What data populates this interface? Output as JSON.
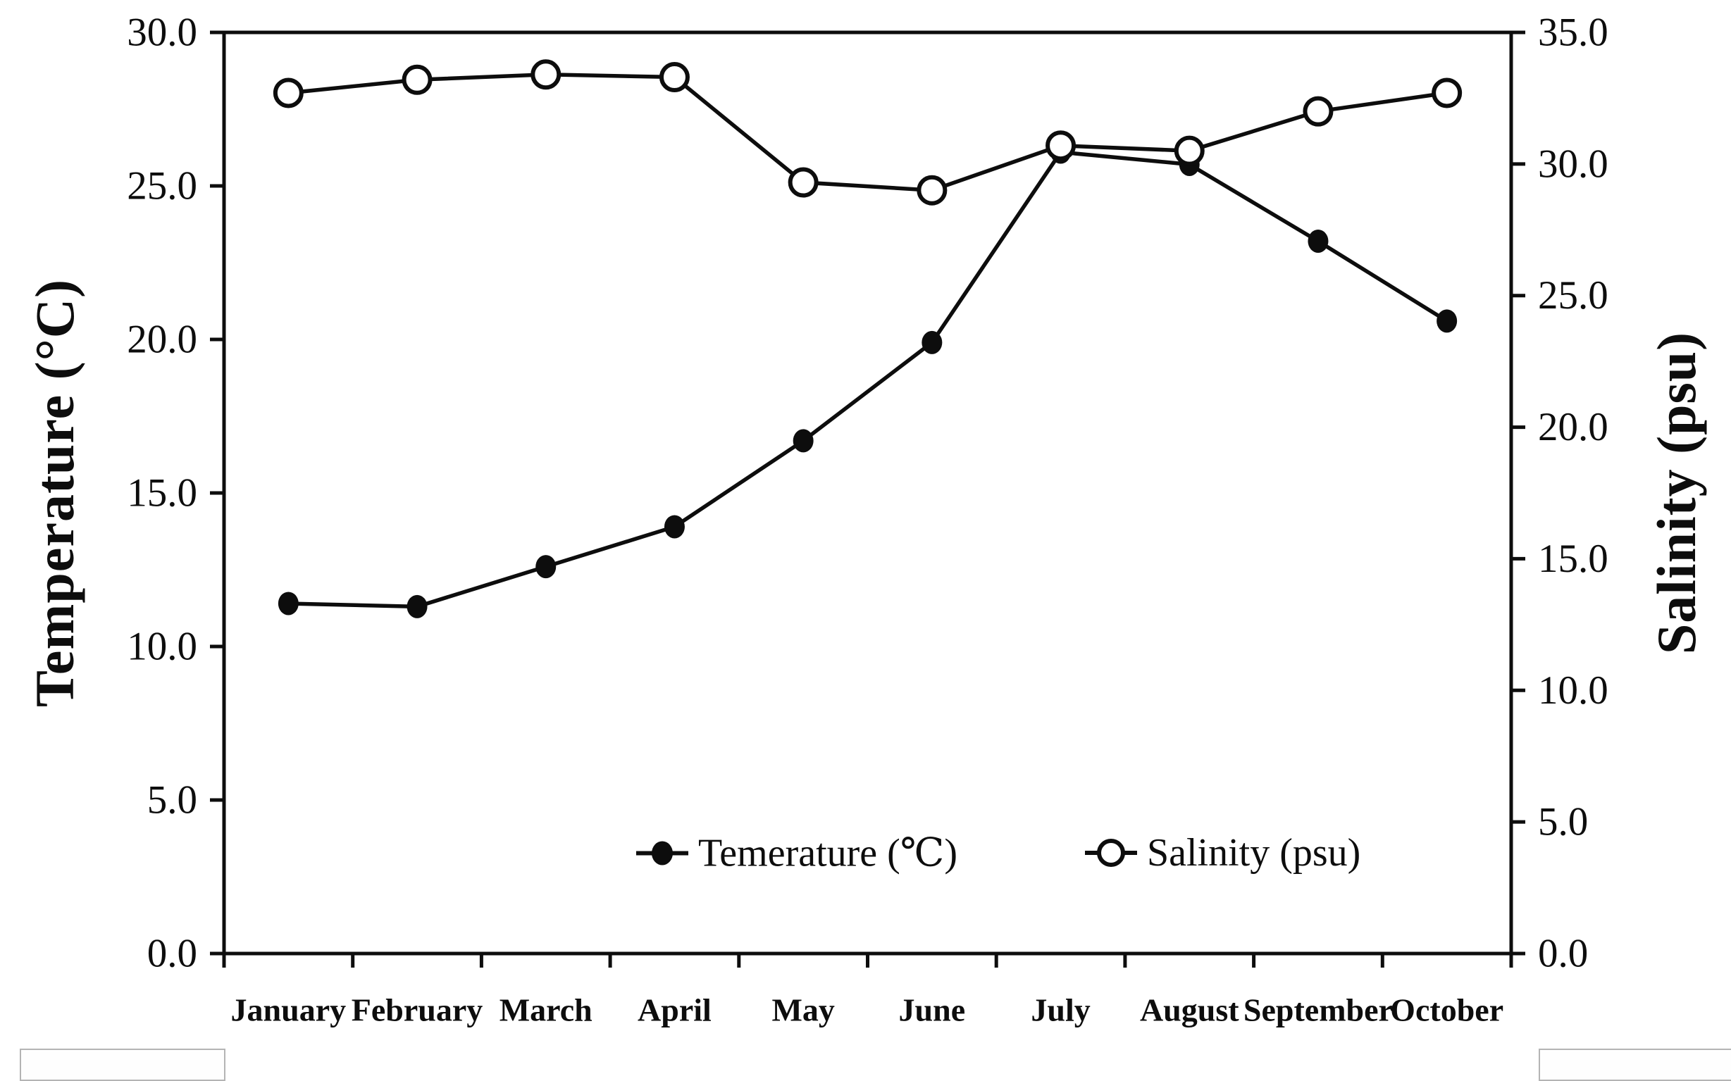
{
  "page": {
    "background": "#ffffff",
    "ink": "#0d0d0d"
  },
  "axes": {
    "left": {
      "title": "Temperature (°C)",
      "tick_labels": [
        "30.0",
        "25.0",
        "20.0",
        "15.0",
        "10.0",
        "5.0",
        "0.0"
      ]
    },
    "right": {
      "title": "Salinity (psu)",
      "tick_labels": [
        "35.0",
        "30.0",
        "25.0",
        "20.0",
        "15.0",
        "10.0",
        "5.0",
        "0.0"
      ]
    }
  },
  "legend": {
    "items": [
      {
        "label": "Temerature (℃)",
        "marker": "filled-circle-icon"
      },
      {
        "label": "Salinity (psu)",
        "marker": "open-circle-icon"
      }
    ]
  },
  "chart_data": {
    "type": "line",
    "categories": [
      "January",
      "February",
      "March",
      "April",
      "May",
      "June",
      "July",
      "August",
      "September",
      "October"
    ],
    "series": [
      {
        "name": "Temerature (℃)",
        "axis": "left",
        "marker": "filled-circle",
        "values": [
          11.4,
          11.3,
          12.6,
          13.9,
          16.7,
          19.9,
          26.1,
          25.7,
          23.2,
          20.6
        ]
      },
      {
        "name": "Salinity (psu)",
        "axis": "right",
        "marker": "open-circle",
        "values": [
          32.7,
          33.2,
          33.4,
          33.3,
          29.3,
          29.0,
          30.7,
          30.5,
          32.0,
          32.7
        ]
      }
    ],
    "left_ylim": [
      0,
      30
    ],
    "right_ylim": [
      0,
      35
    ],
    "xlabel": "",
    "ylabel_left": "Temperature (°C)",
    "ylabel_right": "Salinity (psu)",
    "grid": false,
    "legend_position": "inside-bottom"
  },
  "artifacts": {
    "corner_boxes": "two partial light-gray boxes at bottom corners"
  }
}
